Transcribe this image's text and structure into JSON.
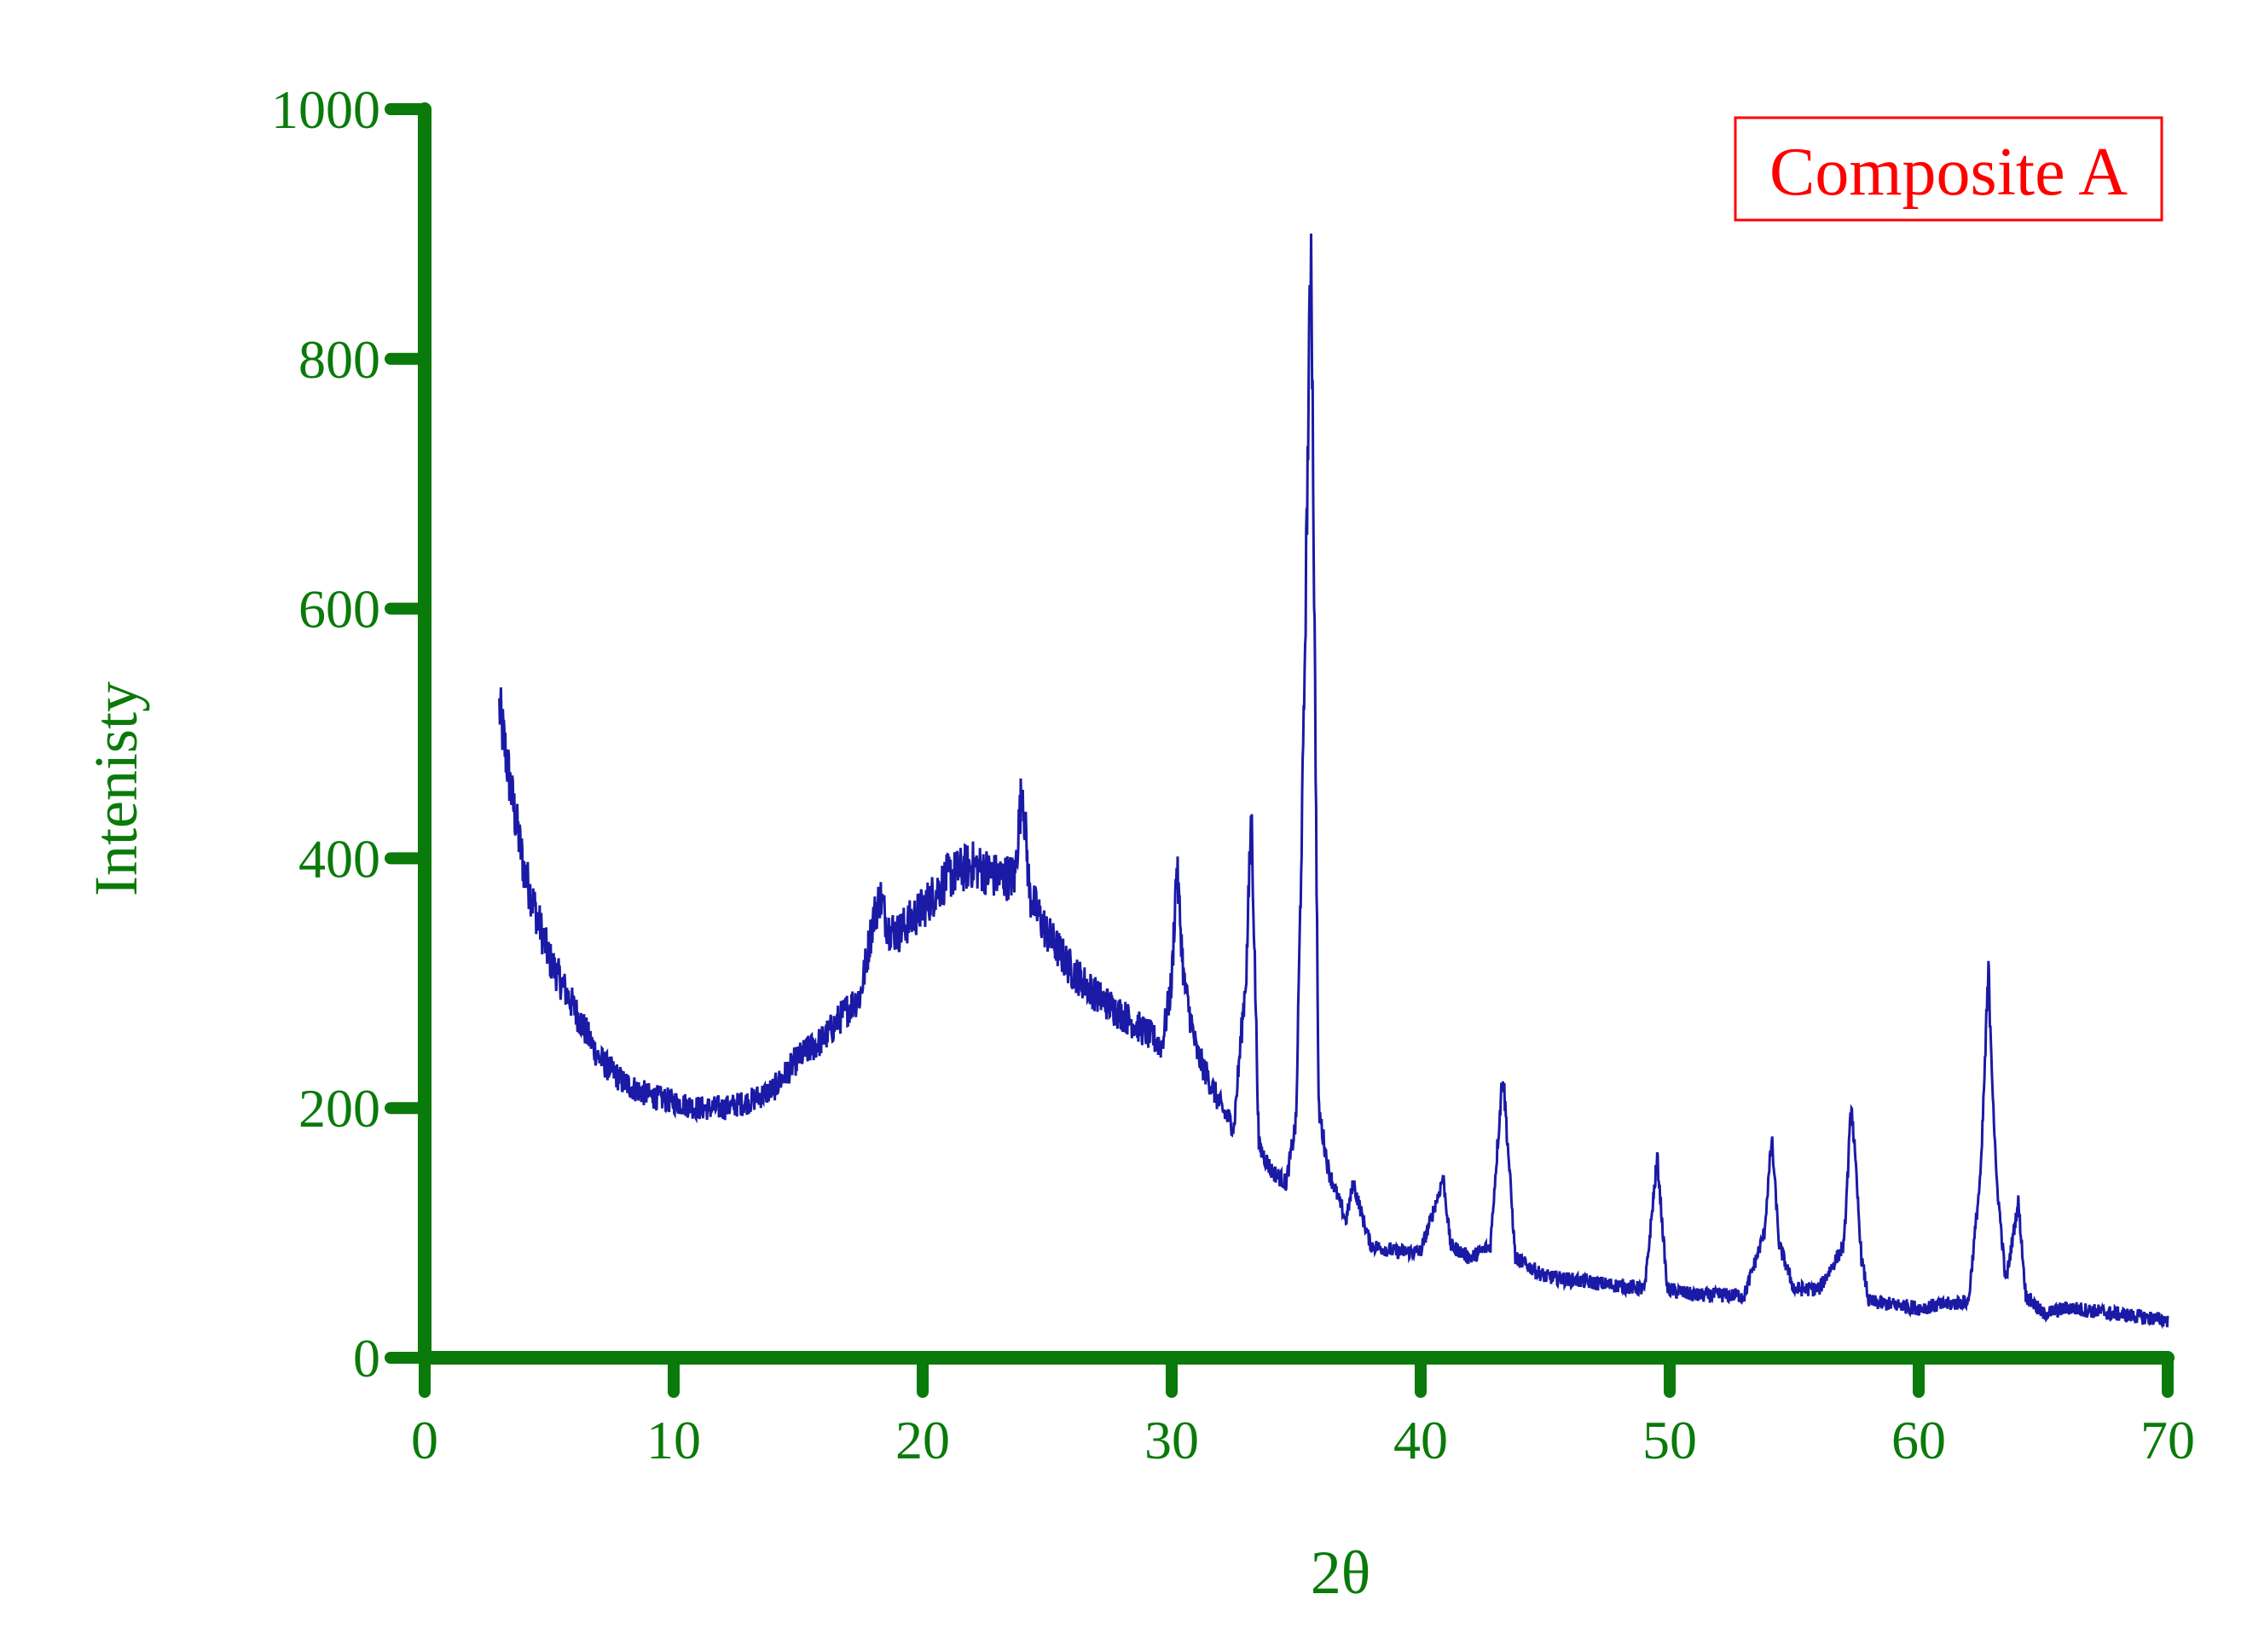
{
  "chart_data": {
    "type": "line",
    "title": "",
    "xlabel": "2θ",
    "ylabel": "Intenisty",
    "xlim": [
      0,
      70
    ],
    "ylim": [
      0,
      1000
    ],
    "x_ticks": [
      "0",
      "10",
      "20",
      "30",
      "40",
      "50",
      "60",
      "70"
    ],
    "y_ticks": [
      "0",
      "200",
      "400",
      "600",
      "800",
      "1000"
    ],
    "grid": false,
    "legend_position": "top-right",
    "colors": {
      "axis": "#0a7a0a",
      "series": "#1a1aa6",
      "legend": "#ff0000"
    },
    "series": [
      {
        "name": "Composite A",
        "x": [
          3,
          3.5,
          4,
          5,
          6,
          7,
          8,
          9,
          10,
          11,
          12,
          13,
          14,
          15,
          16,
          17,
          17.5,
          18,
          18.3,
          18.6,
          19,
          20,
          21,
          22,
          23,
          23.7,
          24,
          24.3,
          25,
          26,
          27,
          28,
          29,
          29.6,
          30,
          30.2,
          30.5,
          31,
          32,
          32.5,
          33,
          33.2,
          33.5,
          34,
          34.6,
          35,
          35.3,
          35.6,
          35.9,
          36.3,
          37,
          37.3,
          37.7,
          38,
          39,
          40,
          40.7,
          40.9,
          41.2,
          42,
          42.8,
          43.3,
          43.8,
          45,
          47,
          49,
          49.5,
          49.9,
          51,
          53,
          53.8,
          54.1,
          54.4,
          55,
          56,
          57,
          57.3,
          57.7,
          58,
          60,
          62,
          62.5,
          62.8,
          63.1,
          63.5,
          64.0,
          64.3,
          65,
          66,
          68,
          70
        ],
        "values": [
          520,
          450,
          390,
          320,
          280,
          240,
          220,
          210,
          205,
          200,
          200,
          205,
          215,
          240,
          255,
          280,
          290,
          350,
          370,
          345,
          340,
          360,
          385,
          395,
          385,
          385,
          460,
          370,
          340,
          310,
          290,
          275,
          260,
          250,
          300,
          395,
          300,
          245,
          200,
          185,
          310,
          440,
          170,
          150,
          140,
          190,
          500,
          905,
          200,
          150,
          110,
          140,
          110,
          90,
          85,
          85,
          130,
          145,
          90,
          80,
          90,
          230,
          80,
          65,
          60,
          55,
          160,
          55,
          50,
          50,
          100,
          175,
          90,
          55,
          55,
          90,
          205,
          80,
          45,
          40,
          45,
          150,
          310,
          150,
          60,
          125,
          50,
          35,
          40,
          35,
          30
        ]
      }
    ]
  }
}
